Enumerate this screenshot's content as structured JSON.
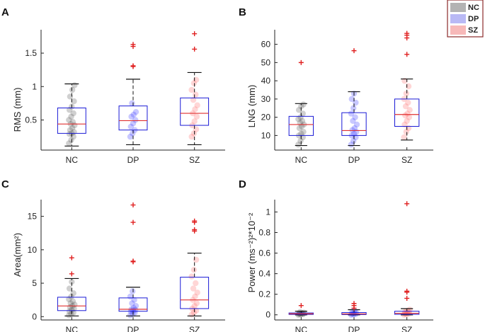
{
  "legend": {
    "entries": [
      {
        "label": "NC",
        "color": "#b3b3b3"
      },
      {
        "label": "DP",
        "color": "#b9b9f5"
      },
      {
        "label": "SZ",
        "color": "#f7b9b9"
      }
    ],
    "placement": "top-right",
    "border_color": "#8b2a2a"
  },
  "colors": {
    "box": "#1a1ad6",
    "median": "#e03030",
    "whisker": "#111111",
    "outlier": "#e02020",
    "NC_points": "#555555",
    "DP_points": "#3a3aff",
    "SZ_points": "#ff6a6a"
  },
  "chart_data": [
    {
      "panel": "A",
      "type": "box",
      "ylabel": "RMS (mm)",
      "categories": [
        "NC",
        "DP",
        "SZ"
      ],
      "ylim": [
        0.05,
        1.85
      ],
      "yticks": [
        0.5,
        1,
        1.5
      ],
      "ytick_labels": [
        "0.5",
        "1",
        "1.5"
      ],
      "boxes": [
        {
          "name": "NC",
          "min": 0.11,
          "q1": 0.3,
          "median": 0.44,
          "q3": 0.68,
          "max": 1.04,
          "outliers": [],
          "points": [
            0.15,
            0.2,
            0.25,
            0.29,
            0.3,
            0.32,
            0.35,
            0.38,
            0.42,
            0.44,
            0.47,
            0.5,
            0.55,
            0.6,
            0.65,
            0.7,
            0.78,
            0.85,
            0.95,
            1.02
          ]
        },
        {
          "name": "DP",
          "min": 0.13,
          "q1": 0.35,
          "median": 0.49,
          "q3": 0.71,
          "max": 1.11,
          "outliers": [
            1.3,
            1.31,
            1.6,
            1.63
          ],
          "points": [
            0.25,
            0.3,
            0.35,
            0.4,
            0.45,
            0.5,
            0.55,
            0.58,
            0.62,
            0.75
          ]
        },
        {
          "name": "SZ",
          "min": 0.13,
          "q1": 0.42,
          "median": 0.6,
          "q3": 0.83,
          "max": 1.21,
          "outliers": [
            1.56,
            1.79
          ],
          "points": [
            0.25,
            0.3,
            0.36,
            0.42,
            0.48,
            0.55,
            0.6,
            0.66,
            0.72,
            0.8,
            0.88,
            0.95,
            1.05,
            1.1
          ]
        }
      ]
    },
    {
      "panel": "B",
      "type": "box",
      "ylabel": "LNG (mm)",
      "categories": [
        "NC",
        "DP",
        "SZ"
      ],
      "ylim": [
        2,
        68
      ],
      "yticks": [
        10,
        20,
        30,
        40,
        50,
        60
      ],
      "ytick_labels": [
        "10",
        "20",
        "30",
        "40",
        "50",
        "60"
      ],
      "boxes": [
        {
          "name": "NC",
          "min": 4.5,
          "q1": 10,
          "median": 16,
          "q3": 20.5,
          "max": 27.5,
          "outliers": [
            50
          ],
          "points": [
            5,
            7,
            9,
            10,
            11,
            12,
            14,
            15,
            16,
            17,
            18,
            19,
            20,
            22,
            24,
            26,
            27
          ]
        },
        {
          "name": "DP",
          "min": 4.5,
          "q1": 10,
          "median": 12.7,
          "q3": 22.5,
          "max": 34,
          "outliers": [
            56.5
          ],
          "points": [
            5,
            7,
            9,
            10,
            11,
            12,
            13,
            14,
            16,
            18,
            20,
            22,
            25,
            28,
            30,
            33
          ]
        },
        {
          "name": "SZ",
          "min": 7.5,
          "q1": 15,
          "median": 21.5,
          "q3": 30,
          "max": 41,
          "outliers": [
            54.5,
            63.5,
            65,
            66
          ],
          "points": [
            9,
            12,
            14,
            16,
            18,
            20,
            21,
            22,
            24,
            26,
            28,
            30,
            33,
            37,
            40
          ]
        }
      ]
    },
    {
      "panel": "C",
      "type": "box",
      "ylabel": "Area(mm²)",
      "categories": [
        "NC",
        "DP",
        "SZ"
      ],
      "ylim": [
        -0.5,
        17.5
      ],
      "yticks": [
        0,
        5,
        10,
        15
      ],
      "ytick_labels": [
        "0",
        "5",
        "10",
        "15"
      ],
      "boxes": [
        {
          "name": "NC",
          "min": 0.1,
          "q1": 0.9,
          "median": 1.6,
          "q3": 2.9,
          "max": 5.7,
          "outliers": [
            6.4,
            8.8
          ],
          "points": [
            0.2,
            0.4,
            0.6,
            0.8,
            1,
            1.2,
            1.4,
            1.6,
            1.8,
            2,
            2.3,
            2.6,
            3,
            3.5,
            4.2,
            5.2
          ]
        },
        {
          "name": "DP",
          "min": 0.1,
          "q1": 0.8,
          "median": 1.1,
          "q3": 2.8,
          "max": 4.4,
          "outliers": [
            8.2,
            8.3,
            14.1,
            16.7
          ],
          "points": [
            0.2,
            0.4,
            0.6,
            0.8,
            0.9,
            1,
            1.1,
            1.3,
            1.6,
            2,
            2.5,
            3,
            3.8
          ]
        },
        {
          "name": "SZ",
          "min": 0.1,
          "q1": 1.2,
          "median": 2.5,
          "q3": 5.9,
          "max": 9.5,
          "outliers": [
            12.8,
            13,
            14.1,
            14.3
          ],
          "points": [
            0.3,
            0.6,
            0.9,
            1.2,
            1.6,
            2,
            2.5,
            3,
            3.6,
            4.2,
            5,
            6,
            7,
            8.5
          ]
        }
      ]
    },
    {
      "panel": "D",
      "type": "box",
      "ylabel": "Power (ms⁻²)²*10⁻²",
      "categories": [
        "NC",
        "DP",
        "SZ"
      ],
      "ylim": [
        -0.05,
        1.12
      ],
      "yticks": [
        0,
        0.2,
        0.4,
        0.6,
        0.8,
        1
      ],
      "ytick_labels": [
        "0",
        "0.2",
        "0.4",
        "0.6",
        "0.8",
        "1"
      ],
      "boxes": [
        {
          "name": "NC",
          "min": 0,
          "q1": 0.004,
          "median": 0.01,
          "q3": 0.018,
          "max": 0.035,
          "outliers": [
            0.09
          ],
          "points": [
            0,
            0.003,
            0.006,
            0.008,
            0.01,
            0.012,
            0.015,
            0.018,
            0.022,
            0.028
          ]
        },
        {
          "name": "DP",
          "min": 0,
          "q1": 0.003,
          "median": 0.009,
          "q3": 0.022,
          "max": 0.05,
          "outliers": [
            0.065,
            0.09,
            0.11
          ],
          "points": [
            0,
            0.004,
            0.007,
            0.01,
            0.014,
            0.02,
            0.03,
            0.04
          ]
        },
        {
          "name": "SZ",
          "min": 0,
          "q1": 0.005,
          "median": 0.015,
          "q3": 0.035,
          "max": 0.06,
          "outliers": [
            0.16,
            0.22,
            0.23,
            1.08
          ],
          "points": [
            0,
            0.005,
            0.01,
            0.015,
            0.02,
            0.025,
            0.03,
            0.04,
            0.05
          ]
        }
      ]
    }
  ]
}
